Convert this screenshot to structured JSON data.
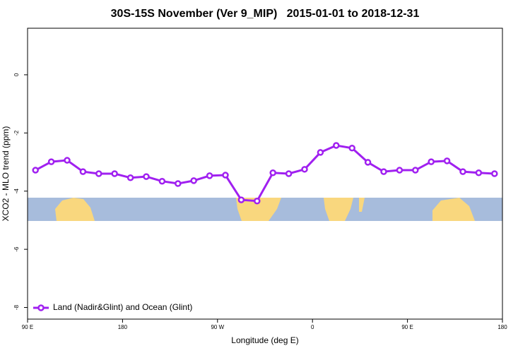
{
  "chart_data": {
    "type": "line",
    "title": "30S-15S November (Ver 9_MIP)   2015-01-01 to 2018-12-31",
    "xlabel": "Longitude (deg E)",
    "ylabel": "XCO2 - MLO trend (ppm)",
    "x": [
      97.5,
      112.5,
      127.5,
      142.5,
      157.5,
      172.5,
      187.5,
      202.5,
      217.5,
      232.5,
      247.5,
      262.5,
      277.5,
      292.5,
      307.5,
      322.5,
      337.5,
      352.5,
      367.5,
      382.5,
      397.5,
      412.5,
      427.5,
      442.5,
      457.5,
      472.5,
      487.5,
      502.5,
      517.5,
      532.5
    ],
    "series": [
      {
        "name": "Land (Nadir&Glint) and Ocean (Glint)",
        "color": "#a020f0",
        "values": [
          -3.28,
          -2.99,
          -2.94,
          -3.33,
          -3.4,
          -3.4,
          -3.54,
          -3.5,
          -3.66,
          -3.74,
          -3.64,
          -3.47,
          -3.45,
          -4.3,
          -4.34,
          -3.37,
          -3.4,
          -3.25,
          -2.67,
          -2.43,
          -2.52,
          -3.01,
          -3.33,
          -3.28,
          -3.28,
          -2.99,
          -2.96,
          -3.33,
          -3.37,
          -3.4
        ]
      }
    ],
    "xlim": [
      90,
      540
    ],
    "xticks": [
      {
        "value": 90,
        "label": "90 E"
      },
      180,
      {
        "value": 270,
        "label": "90 W"
      },
      {
        "value": 360,
        "label": "0"
      },
      {
        "value": 450,
        "label": "90 E"
      },
      {
        "value": 540,
        "label": "180"
      }
    ],
    "ylim": [
      -8.4,
      1.6
    ],
    "yticks": [
      0,
      -2,
      -4,
      -6,
      -8
    ],
    "legend": "bottom-left"
  }
}
